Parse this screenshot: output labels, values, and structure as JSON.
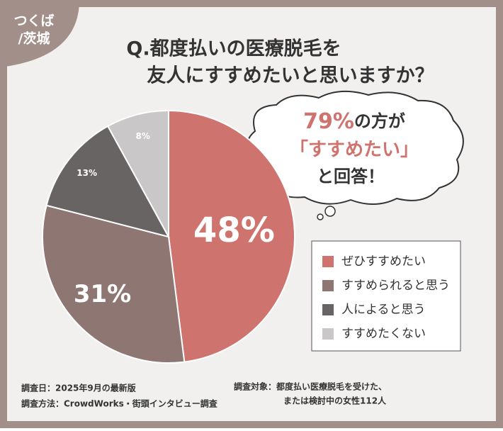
{
  "corner_tag": [
    "つくば",
    "/茨城"
  ],
  "chart_data": {
    "type": "pie",
    "title": [
      "Q.都度払いの医療脱毛を",
      "友人にすすめたいと思いますか？"
    ],
    "categories": [
      "ぜひすすめたい",
      "すすめられると思う",
      "人によると思う",
      "すすめたくない"
    ],
    "values": [
      48,
      31,
      13,
      8
    ],
    "value_labels": [
      "48%",
      "31%",
      "13%",
      "8%"
    ],
    "colors": [
      "#cf736e",
      "#8e7672",
      "#696464",
      "#c9c7c7"
    ],
    "legend": "right"
  },
  "callout": {
    "highlight": "79%",
    "line1": "の方が",
    "line2": "「すすめたい」",
    "line3": "と回答！"
  },
  "footnotes": {
    "date": "調査日：2025年9月の最新版",
    "method": "調査方法：CrowdWorks・街頭インタビュー調査",
    "target_1": "調査対象：都度払い医療脱毛を受けた、",
    "target_2": "または検討中の女性112人"
  }
}
